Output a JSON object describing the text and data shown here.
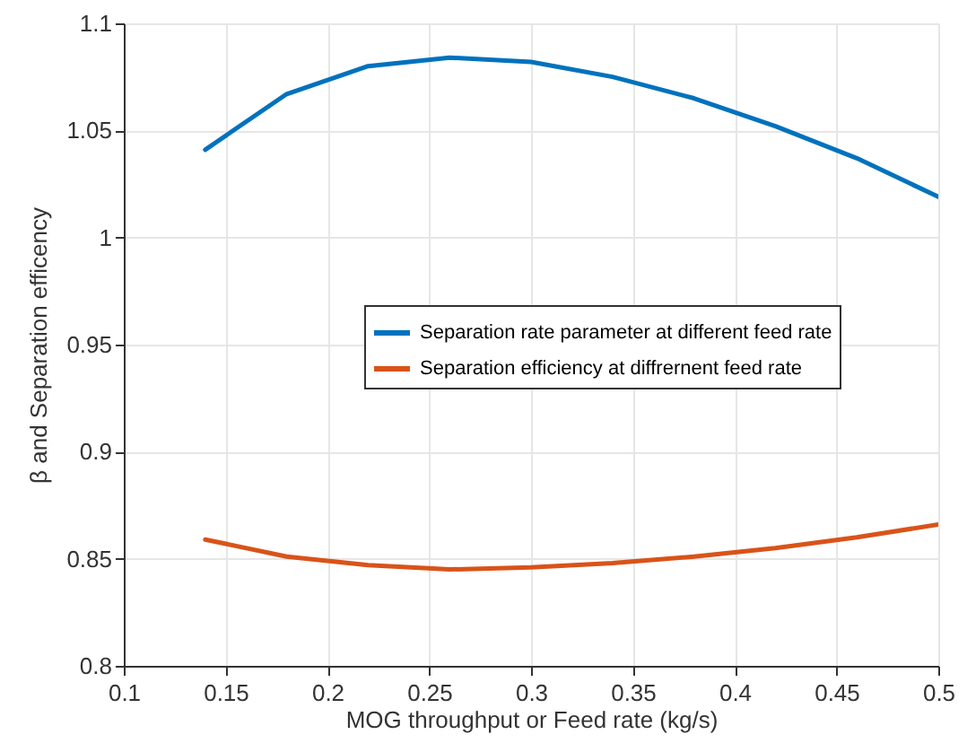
{
  "chart_data": {
    "type": "line",
    "xlabel": "MOG throughput or Feed rate (kg/s)",
    "ylabel": "β and Separation efficency",
    "x": [
      0.14,
      0.18,
      0.22,
      0.26,
      0.3,
      0.34,
      0.38,
      0.42,
      0.46,
      0.5
    ],
    "series": [
      {
        "name": "Separation rate parameter at different feed rate",
        "color": "#0072bd",
        "values": [
          1.041,
          1.067,
          1.08,
          1.084,
          1.082,
          1.075,
          1.065,
          1.052,
          1.037,
          1.019
        ]
      },
      {
        "name": "Separation efficiency at diffrernent feed rate",
        "color": "#d95319",
        "values": [
          0.859,
          0.851,
          0.847,
          0.845,
          0.846,
          0.848,
          0.851,
          0.855,
          0.86,
          0.866
        ]
      }
    ],
    "xlim": [
      0.1,
      0.5
    ],
    "xticks": [
      0.1,
      0.15,
      0.2,
      0.25,
      0.3,
      0.35,
      0.4,
      0.45,
      0.5
    ],
    "ylim": [
      0.8,
      1.1
    ],
    "yticks": [
      0.8,
      0.85,
      0.9,
      0.95,
      1,
      1.05,
      1.1
    ],
    "grid": true,
    "legend": "right",
    "marker": "none",
    "line_style": "solid"
  }
}
